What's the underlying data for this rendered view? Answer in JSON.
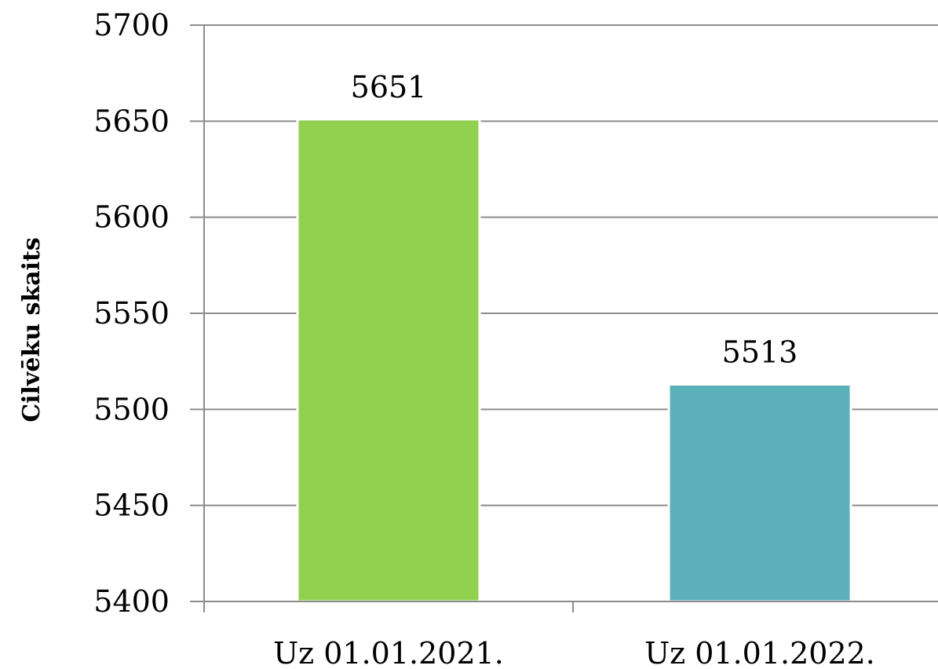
{
  "chart_data": {
    "type": "bar",
    "title": "",
    "xlabel": "",
    "ylabel": "Cilvēku skaits",
    "categories": [
      "Uz 01.01.2021.",
      "Uz 01.01.2022."
    ],
    "values": [
      5651,
      5513
    ],
    "data_labels": [
      "5651",
      "5513"
    ],
    "colors": [
      "#92D050",
      "#5BB0BA"
    ],
    "ylim": [
      5400,
      5700
    ],
    "yticks": [
      5400,
      5450,
      5500,
      5550,
      5600,
      5650,
      5700
    ],
    "ytick_labels": [
      "5400",
      "5450",
      "5500",
      "5550",
      "5600",
      "5650",
      "5700"
    ],
    "grid": true,
    "legend": "none"
  }
}
